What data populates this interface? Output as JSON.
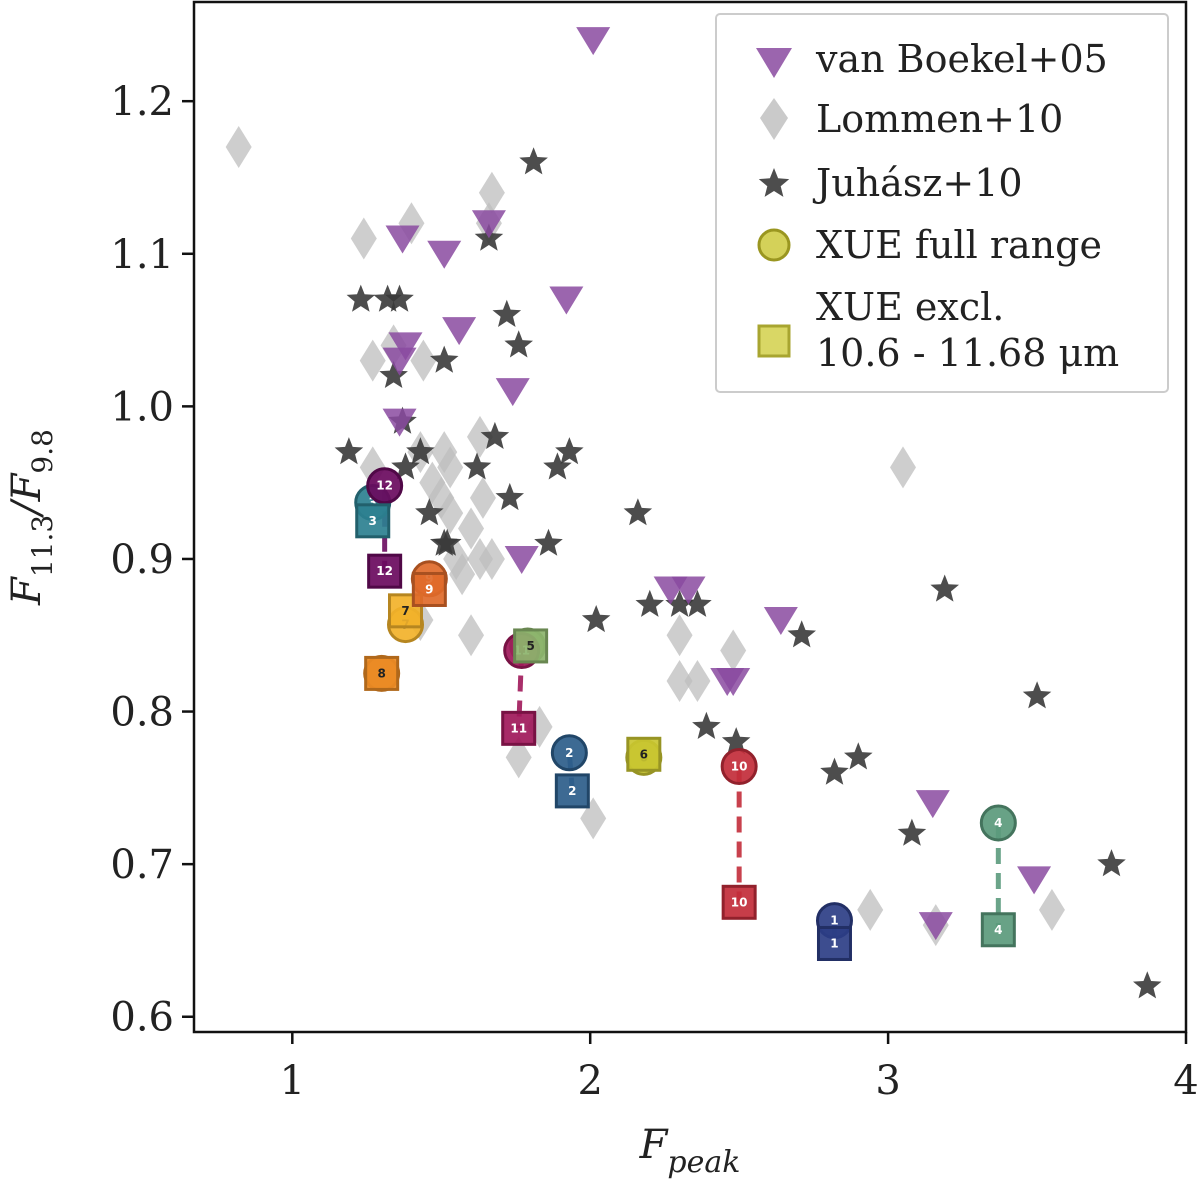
{
  "chart_data": {
    "type": "scatter",
    "xlabel": "F_peak",
    "ylabel": "F11.3/F9.8",
    "xlim": [
      0.67,
      4.0
    ],
    "ylim": [
      0.59,
      1.265
    ],
    "x_ticks": [
      "1",
      "2",
      "3",
      "4"
    ],
    "x_tick_values": [
      1,
      2,
      3,
      4
    ],
    "y_ticks": [
      "0.6",
      "0.7",
      "0.8",
      "0.9",
      "1.0",
      "1.1",
      "1.2"
    ],
    "y_tick_values": [
      0.6,
      0.7,
      0.8,
      0.9,
      1.0,
      1.1,
      1.2
    ],
    "grid": false,
    "legend_position": "top-right",
    "legend": [
      {
        "label": "van Boekel+05",
        "marker": "triangle-down",
        "color": "#8a4aa0"
      },
      {
        "label": "Lommen+10",
        "marker": "diamond",
        "color": "#bdbdbd"
      },
      {
        "label": "Juhász+10",
        "marker": "star",
        "color": "#3a3a3a"
      },
      {
        "label": "XUE full range",
        "marker": "circle",
        "color": "#c9c530"
      },
      {
        "label": "XUE excl.",
        "label2": "10.6 - 11.68 μm",
        "marker": "square",
        "color": "#d2d04a"
      }
    ],
    "series": [
      {
        "name": "Lommen+10",
        "marker": "diamond",
        "color": "#bdbdbd",
        "points": [
          [
            0.82,
            1.17
          ],
          [
            1.24,
            1.11
          ],
          [
            1.4,
            1.12
          ],
          [
            1.67,
            1.14
          ],
          [
            1.66,
            1.12
          ],
          [
            1.27,
            1.03
          ],
          [
            1.34,
            1.04
          ],
          [
            1.44,
            1.03
          ],
          [
            1.27,
            0.96
          ],
          [
            1.43,
            0.97
          ],
          [
            1.47,
            0.95
          ],
          [
            1.51,
            0.97
          ],
          [
            1.53,
            0.96
          ],
          [
            1.5,
            0.94
          ],
          [
            1.53,
            0.93
          ],
          [
            1.55,
            0.9
          ],
          [
            1.57,
            0.89
          ],
          [
            1.6,
            0.92
          ],
          [
            1.63,
            0.98
          ],
          [
            1.64,
            0.94
          ],
          [
            1.67,
            0.9
          ],
          [
            1.63,
            0.9
          ],
          [
            1.6,
            0.85
          ],
          [
            1.76,
            0.77
          ],
          [
            1.83,
            0.79
          ],
          [
            1.43,
            0.86
          ],
          [
            2.01,
            0.73
          ],
          [
            2.3,
            0.85
          ],
          [
            2.3,
            0.82
          ],
          [
            2.36,
            0.82
          ],
          [
            2.48,
            0.84
          ],
          [
            2.94,
            0.67
          ],
          [
            3.05,
            0.96
          ],
          [
            3.16,
            0.66
          ],
          [
            3.55,
            0.67
          ]
        ]
      },
      {
        "name": "Juhász+10",
        "marker": "star",
        "color": "#3a3a3a",
        "points": [
          [
            1.23,
            1.07
          ],
          [
            1.32,
            1.07
          ],
          [
            1.36,
            1.07
          ],
          [
            1.34,
            1.02
          ],
          [
            1.37,
            0.99
          ],
          [
            1.19,
            0.97
          ],
          [
            1.38,
            0.96
          ],
          [
            1.43,
            0.97
          ],
          [
            1.46,
            0.93
          ],
          [
            1.51,
            0.91
          ],
          [
            1.52,
            0.91
          ],
          [
            1.51,
            1.03
          ],
          [
            1.66,
            1.11
          ],
          [
            1.81,
            1.16
          ],
          [
            1.72,
            1.06
          ],
          [
            1.76,
            1.04
          ],
          [
            1.68,
            0.98
          ],
          [
            1.62,
            0.96
          ],
          [
            1.73,
            0.94
          ],
          [
            1.86,
            0.91
          ],
          [
            1.89,
            0.96
          ],
          [
            1.93,
            0.97
          ],
          [
            2.02,
            0.86
          ],
          [
            2.16,
            0.93
          ],
          [
            2.2,
            0.87
          ],
          [
            2.3,
            0.87
          ],
          [
            2.36,
            0.87
          ],
          [
            2.39,
            0.79
          ],
          [
            2.49,
            0.78
          ],
          [
            2.71,
            0.85
          ],
          [
            2.82,
            0.76
          ],
          [
            2.9,
            0.77
          ],
          [
            3.08,
            0.72
          ],
          [
            3.19,
            0.88
          ],
          [
            3.5,
            0.81
          ],
          [
            3.75,
            0.7
          ],
          [
            3.87,
            0.62
          ]
        ]
      },
      {
        "name": "van Boekel+05",
        "marker": "triangle-down",
        "color": "#8a4aa0",
        "points": [
          [
            2.01,
            1.24
          ],
          [
            1.37,
            1.11
          ],
          [
            1.51,
            1.1
          ],
          [
            1.66,
            1.12
          ],
          [
            1.92,
            1.07
          ],
          [
            1.56,
            1.05
          ],
          [
            1.38,
            1.04
          ],
          [
            1.36,
            1.03
          ],
          [
            1.74,
            1.01
          ],
          [
            1.36,
            0.99
          ],
          [
            1.77,
            0.9
          ],
          [
            2.27,
            0.88
          ],
          [
            2.33,
            0.88
          ],
          [
            2.64,
            0.86
          ],
          [
            2.46,
            0.82
          ],
          [
            2.48,
            0.82
          ],
          [
            3.15,
            0.74
          ],
          [
            3.49,
            0.69
          ],
          [
            3.16,
            0.66
          ]
        ]
      },
      {
        "name": "XUE full range",
        "marker": "circle",
        "points": [
          {
            "id": "1",
            "x": 2.82,
            "y": 0.663,
            "color": "#2d3e86"
          },
          {
            "id": "2",
            "x": 1.93,
            "y": 0.773,
            "color": "#2c5d8a"
          },
          {
            "id": "3",
            "x": 1.27,
            "y": 0.937,
            "color": "#2d8090"
          },
          {
            "id": "4",
            "x": 3.37,
            "y": 0.727,
            "color": "#5b9a7c"
          },
          {
            "id": "5",
            "x": 1.79,
            "y": 0.843,
            "color": "#8cb46c"
          },
          {
            "id": "6",
            "x": 2.18,
            "y": 0.77,
            "color": "#c9c530"
          },
          {
            "id": "7",
            "x": 1.38,
            "y": 0.857,
            "color": "#f2b22a"
          },
          {
            "id": "8",
            "x": 1.3,
            "y": 0.825,
            "color": "#ea8a24"
          },
          {
            "id": "9",
            "x": 1.46,
            "y": 0.887,
            "color": "#e06a2a"
          },
          {
            "id": "10",
            "x": 2.5,
            "y": 0.764,
            "color": "#c22c3a"
          },
          {
            "id": "11",
            "x": 1.77,
            "y": 0.84,
            "color": "#a0185a"
          },
          {
            "id": "12",
            "x": 1.31,
            "y": 0.948,
            "color": "#6a0a5e"
          }
        ]
      },
      {
        "name": "XUE excl. 10.6 - 11.68 μm",
        "marker": "square",
        "points": [
          {
            "id": "1",
            "x": 2.82,
            "y": 0.648,
            "color": "#2d3e86"
          },
          {
            "id": "2",
            "x": 1.94,
            "y": 0.748,
            "color": "#2c5d8a"
          },
          {
            "id": "3",
            "x": 1.27,
            "y": 0.925,
            "color": "#2d8090"
          },
          {
            "id": "4",
            "x": 3.37,
            "y": 0.657,
            "color": "#5b9a7c"
          },
          {
            "id": "5",
            "x": 1.8,
            "y": 0.843,
            "color": "#8cb46c"
          },
          {
            "id": "6",
            "x": 2.18,
            "y": 0.772,
            "color": "#c9c530"
          },
          {
            "id": "7",
            "x": 1.38,
            "y": 0.866,
            "color": "#f2b22a"
          },
          {
            "id": "8",
            "x": 1.3,
            "y": 0.825,
            "color": "#ea8a24"
          },
          {
            "id": "9",
            "x": 1.46,
            "y": 0.88,
            "color": "#e06a2a"
          },
          {
            "id": "10",
            "x": 2.5,
            "y": 0.675,
            "color": "#c22c3a"
          },
          {
            "id": "11",
            "x": 1.76,
            "y": 0.789,
            "color": "#a0185a"
          },
          {
            "id": "12",
            "x": 1.31,
            "y": 0.892,
            "color": "#6a0a5e"
          }
        ]
      }
    ]
  }
}
